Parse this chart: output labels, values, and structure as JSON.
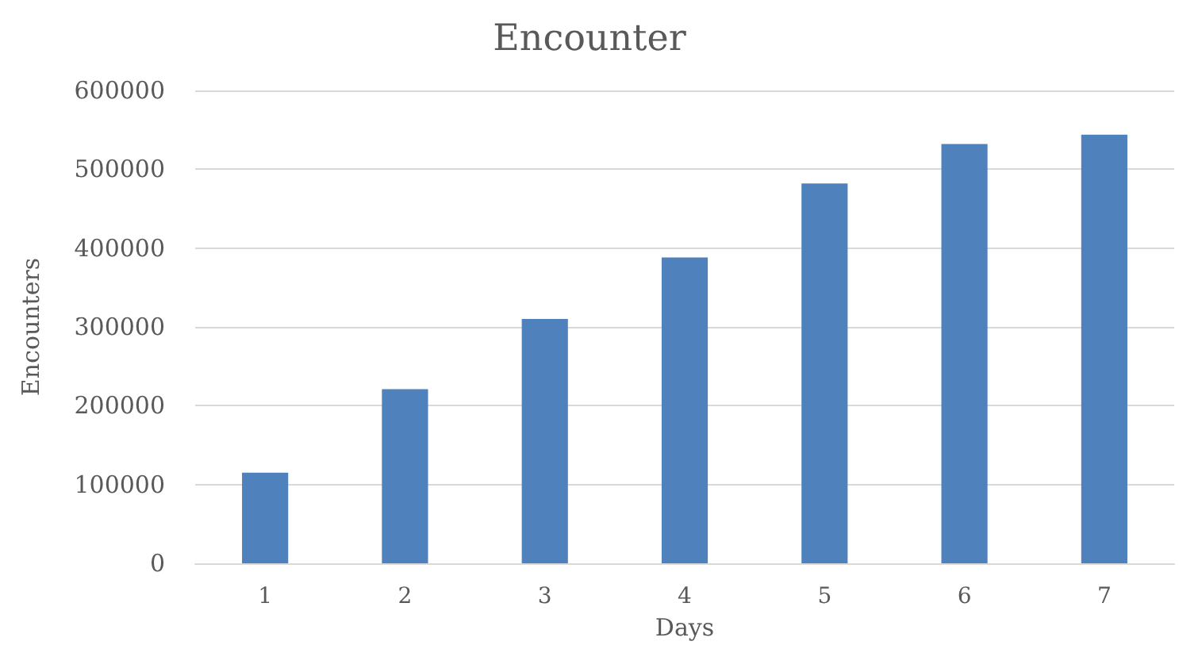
{
  "chart_data": {
    "type": "bar",
    "title": "Encounter",
    "xlabel": "Days",
    "ylabel": "Encounters",
    "categories": [
      "1",
      "2",
      "3",
      "4",
      "5",
      "6",
      "7"
    ],
    "values": [
      115000,
      221000,
      310000,
      388000,
      482000,
      532000,
      544000
    ],
    "color": "#4f81bd",
    "ylim": [
      0,
      600000
    ],
    "yticks": [
      0,
      100000,
      200000,
      300000,
      400000,
      500000,
      600000
    ],
    "grid": "y"
  }
}
